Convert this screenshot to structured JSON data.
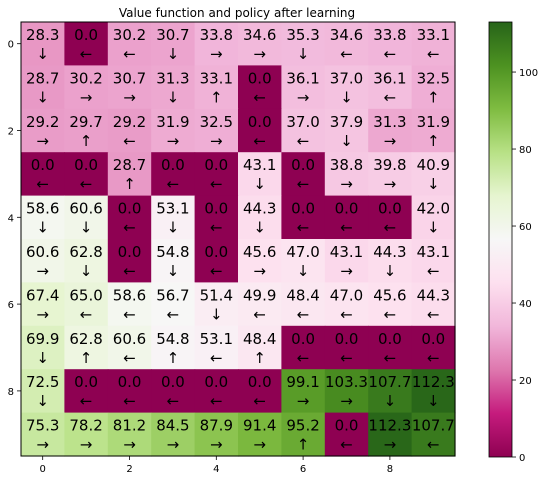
{
  "chart_data": {
    "type": "heatmap",
    "title": "Value function and policy after learning",
    "xlabel": "",
    "ylabel": "",
    "x_ticks": [
      "0",
      "2",
      "4",
      "6",
      "8"
    ],
    "y_ticks": [
      "0",
      "2",
      "4",
      "6",
      "8"
    ],
    "colormap": "PiYG",
    "colorbar": {
      "min": 0,
      "max": 113,
      "ticks": [
        "0",
        "20",
        "40",
        "60",
        "80",
        "100"
      ]
    },
    "values": [
      [
        "28.3",
        "0.0",
        "30.2",
        "30.7",
        "33.8",
        "34.6",
        "35.3",
        "34.6",
        "33.8",
        "33.1"
      ],
      [
        "28.7",
        "30.2",
        "30.7",
        "31.3",
        "33.1",
        "0.0",
        "36.1",
        "37.0",
        "36.1",
        "32.5"
      ],
      [
        "29.2",
        "29.7",
        "29.2",
        "31.9",
        "32.5",
        "0.0",
        "37.0",
        "37.9",
        "31.3",
        "31.9"
      ],
      [
        "0.0",
        "0.0",
        "28.7",
        "0.0",
        "0.0",
        "43.1",
        "0.0",
        "38.8",
        "39.8",
        "40.9"
      ],
      [
        "58.6",
        "60.6",
        "0.0",
        "53.1",
        "0.0",
        "44.3",
        "0.0",
        "0.0",
        "0.0",
        "42.0"
      ],
      [
        "60.6",
        "62.8",
        "0.0",
        "54.8",
        "0.0",
        "45.6",
        "47.0",
        "43.1",
        "44.3",
        "43.1"
      ],
      [
        "67.4",
        "65.0",
        "58.6",
        "56.7",
        "51.4",
        "49.9",
        "48.4",
        "47.0",
        "45.6",
        "44.3"
      ],
      [
        "69.9",
        "62.8",
        "60.6",
        "54.8",
        "53.1",
        "48.4",
        "0.0",
        "0.0",
        "0.0",
        "0.0"
      ],
      [
        "72.5",
        "0.0",
        "0.0",
        "0.0",
        "0.0",
        "0.0",
        "99.1",
        "103.3",
        "107.7",
        "112.3"
      ],
      [
        "75.3",
        "78.2",
        "81.2",
        "84.5",
        "87.9",
        "91.4",
        "95.2",
        "0.0",
        "112.3",
        "107.7"
      ]
    ],
    "arrows": [
      [
        "↓",
        "←",
        "←",
        "↓",
        "→",
        "→",
        "↓",
        "←",
        "←",
        "←"
      ],
      [
        "↓",
        "→",
        "→",
        "↓",
        "↑",
        "←",
        "→",
        "↓",
        "←",
        "↑"
      ],
      [
        "→",
        "↑",
        "←",
        "→",
        "→",
        "←",
        "←",
        "↓",
        "→",
        "↑"
      ],
      [
        "←",
        "←",
        "↑",
        "←",
        "←",
        "↓",
        "←",
        "→",
        "→",
        "↓"
      ],
      [
        "↓",
        "↓",
        "←",
        "↓",
        "←",
        "↓",
        "←",
        "←",
        "←",
        "↓"
      ],
      [
        "→",
        "↓",
        "←",
        "↓",
        "←",
        "→",
        "↓",
        "→",
        "↓",
        "←"
      ],
      [
        "→",
        "←",
        "←",
        "←",
        "↓",
        "←",
        "←",
        "←",
        "←",
        "←"
      ],
      [
        "↓",
        "↑",
        "←",
        "↑",
        "←",
        "↑",
        "←",
        "←",
        "←",
        "←"
      ],
      [
        "↓",
        "←",
        "←",
        "←",
        "←",
        "←",
        "→",
        "→",
        "↓",
        "↓"
      ],
      [
        "→",
        "→",
        "→",
        "→",
        "→",
        "→",
        "↑",
        "←",
        "→",
        "←"
      ]
    ]
  }
}
